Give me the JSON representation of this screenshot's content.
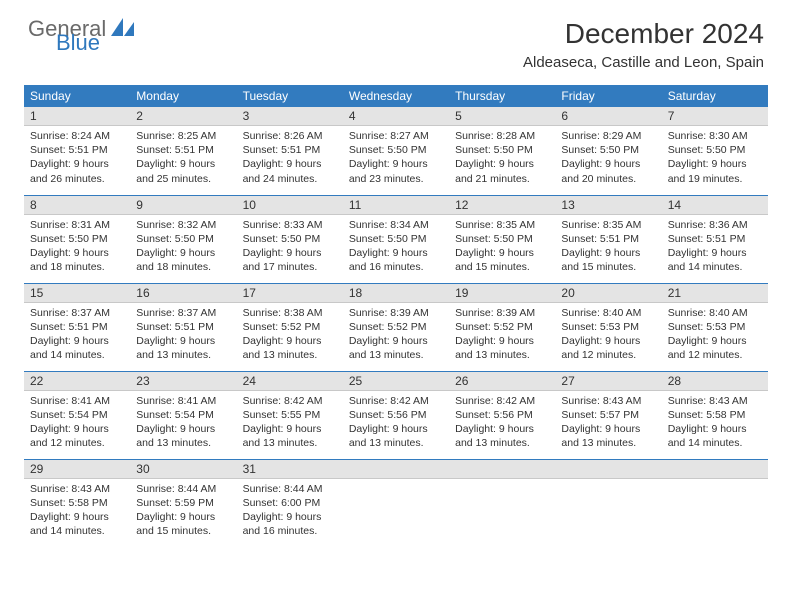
{
  "brand": {
    "part1": "General",
    "part2": "Blue",
    "sail_color": "#2f78bd",
    "gray": "#6a6a6a"
  },
  "title": "December 2024",
  "location": "Aldeaseca, Castille and Leon, Spain",
  "header_bg": "#327bbf",
  "daynum_bg": "#e4e4e4",
  "weekdays": [
    "Sunday",
    "Monday",
    "Tuesday",
    "Wednesday",
    "Thursday",
    "Friday",
    "Saturday"
  ],
  "weeks": [
    [
      {
        "n": "1",
        "sr": "Sunrise: 8:24 AM",
        "ss": "Sunset: 5:51 PM",
        "d1": "Daylight: 9 hours",
        "d2": "and 26 minutes."
      },
      {
        "n": "2",
        "sr": "Sunrise: 8:25 AM",
        "ss": "Sunset: 5:51 PM",
        "d1": "Daylight: 9 hours",
        "d2": "and 25 minutes."
      },
      {
        "n": "3",
        "sr": "Sunrise: 8:26 AM",
        "ss": "Sunset: 5:51 PM",
        "d1": "Daylight: 9 hours",
        "d2": "and 24 minutes."
      },
      {
        "n": "4",
        "sr": "Sunrise: 8:27 AM",
        "ss": "Sunset: 5:50 PM",
        "d1": "Daylight: 9 hours",
        "d2": "and 23 minutes."
      },
      {
        "n": "5",
        "sr": "Sunrise: 8:28 AM",
        "ss": "Sunset: 5:50 PM",
        "d1": "Daylight: 9 hours",
        "d2": "and 21 minutes."
      },
      {
        "n": "6",
        "sr": "Sunrise: 8:29 AM",
        "ss": "Sunset: 5:50 PM",
        "d1": "Daylight: 9 hours",
        "d2": "and 20 minutes."
      },
      {
        "n": "7",
        "sr": "Sunrise: 8:30 AM",
        "ss": "Sunset: 5:50 PM",
        "d1": "Daylight: 9 hours",
        "d2": "and 19 minutes."
      }
    ],
    [
      {
        "n": "8",
        "sr": "Sunrise: 8:31 AM",
        "ss": "Sunset: 5:50 PM",
        "d1": "Daylight: 9 hours",
        "d2": "and 18 minutes."
      },
      {
        "n": "9",
        "sr": "Sunrise: 8:32 AM",
        "ss": "Sunset: 5:50 PM",
        "d1": "Daylight: 9 hours",
        "d2": "and 18 minutes."
      },
      {
        "n": "10",
        "sr": "Sunrise: 8:33 AM",
        "ss": "Sunset: 5:50 PM",
        "d1": "Daylight: 9 hours",
        "d2": "and 17 minutes."
      },
      {
        "n": "11",
        "sr": "Sunrise: 8:34 AM",
        "ss": "Sunset: 5:50 PM",
        "d1": "Daylight: 9 hours",
        "d2": "and 16 minutes."
      },
      {
        "n": "12",
        "sr": "Sunrise: 8:35 AM",
        "ss": "Sunset: 5:50 PM",
        "d1": "Daylight: 9 hours",
        "d2": "and 15 minutes."
      },
      {
        "n": "13",
        "sr": "Sunrise: 8:35 AM",
        "ss": "Sunset: 5:51 PM",
        "d1": "Daylight: 9 hours",
        "d2": "and 15 minutes."
      },
      {
        "n": "14",
        "sr": "Sunrise: 8:36 AM",
        "ss": "Sunset: 5:51 PM",
        "d1": "Daylight: 9 hours",
        "d2": "and 14 minutes."
      }
    ],
    [
      {
        "n": "15",
        "sr": "Sunrise: 8:37 AM",
        "ss": "Sunset: 5:51 PM",
        "d1": "Daylight: 9 hours",
        "d2": "and 14 minutes."
      },
      {
        "n": "16",
        "sr": "Sunrise: 8:37 AM",
        "ss": "Sunset: 5:51 PM",
        "d1": "Daylight: 9 hours",
        "d2": "and 13 minutes."
      },
      {
        "n": "17",
        "sr": "Sunrise: 8:38 AM",
        "ss": "Sunset: 5:52 PM",
        "d1": "Daylight: 9 hours",
        "d2": "and 13 minutes."
      },
      {
        "n": "18",
        "sr": "Sunrise: 8:39 AM",
        "ss": "Sunset: 5:52 PM",
        "d1": "Daylight: 9 hours",
        "d2": "and 13 minutes."
      },
      {
        "n": "19",
        "sr": "Sunrise: 8:39 AM",
        "ss": "Sunset: 5:52 PM",
        "d1": "Daylight: 9 hours",
        "d2": "and 13 minutes."
      },
      {
        "n": "20",
        "sr": "Sunrise: 8:40 AM",
        "ss": "Sunset: 5:53 PM",
        "d1": "Daylight: 9 hours",
        "d2": "and 12 minutes."
      },
      {
        "n": "21",
        "sr": "Sunrise: 8:40 AM",
        "ss": "Sunset: 5:53 PM",
        "d1": "Daylight: 9 hours",
        "d2": "and 12 minutes."
      }
    ],
    [
      {
        "n": "22",
        "sr": "Sunrise: 8:41 AM",
        "ss": "Sunset: 5:54 PM",
        "d1": "Daylight: 9 hours",
        "d2": "and 12 minutes."
      },
      {
        "n": "23",
        "sr": "Sunrise: 8:41 AM",
        "ss": "Sunset: 5:54 PM",
        "d1": "Daylight: 9 hours",
        "d2": "and 13 minutes."
      },
      {
        "n": "24",
        "sr": "Sunrise: 8:42 AM",
        "ss": "Sunset: 5:55 PM",
        "d1": "Daylight: 9 hours",
        "d2": "and 13 minutes."
      },
      {
        "n": "25",
        "sr": "Sunrise: 8:42 AM",
        "ss": "Sunset: 5:56 PM",
        "d1": "Daylight: 9 hours",
        "d2": "and 13 minutes."
      },
      {
        "n": "26",
        "sr": "Sunrise: 8:42 AM",
        "ss": "Sunset: 5:56 PM",
        "d1": "Daylight: 9 hours",
        "d2": "and 13 minutes."
      },
      {
        "n": "27",
        "sr": "Sunrise: 8:43 AM",
        "ss": "Sunset: 5:57 PM",
        "d1": "Daylight: 9 hours",
        "d2": "and 13 minutes."
      },
      {
        "n": "28",
        "sr": "Sunrise: 8:43 AM",
        "ss": "Sunset: 5:58 PM",
        "d1": "Daylight: 9 hours",
        "d2": "and 14 minutes."
      }
    ],
    [
      {
        "n": "29",
        "sr": "Sunrise: 8:43 AM",
        "ss": "Sunset: 5:58 PM",
        "d1": "Daylight: 9 hours",
        "d2": "and 14 minutes."
      },
      {
        "n": "30",
        "sr": "Sunrise: 8:44 AM",
        "ss": "Sunset: 5:59 PM",
        "d1": "Daylight: 9 hours",
        "d2": "and 15 minutes."
      },
      {
        "n": "31",
        "sr": "Sunrise: 8:44 AM",
        "ss": "Sunset: 6:00 PM",
        "d1": "Daylight: 9 hours",
        "d2": "and 16 minutes."
      },
      {
        "n": "",
        "sr": "",
        "ss": "",
        "d1": "",
        "d2": ""
      },
      {
        "n": "",
        "sr": "",
        "ss": "",
        "d1": "",
        "d2": ""
      },
      {
        "n": "",
        "sr": "",
        "ss": "",
        "d1": "",
        "d2": ""
      },
      {
        "n": "",
        "sr": "",
        "ss": "",
        "d1": "",
        "d2": ""
      }
    ]
  ]
}
